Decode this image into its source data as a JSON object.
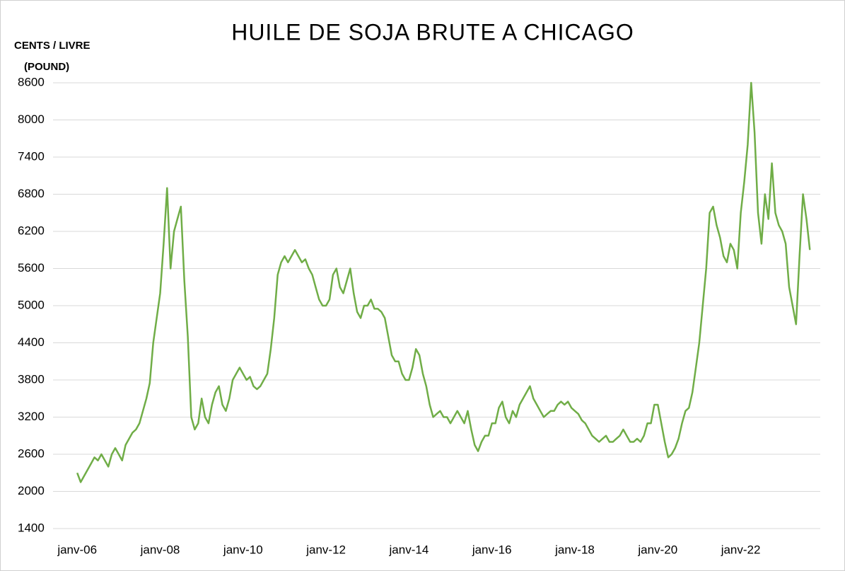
{
  "chart_data": {
    "type": "line",
    "title": "HUILE DE SOJA BRUTE A CHICAGO",
    "y_label": [
      "CENTS / LIVRE",
      "(POUND)"
    ],
    "x": [
      "2006-01",
      "2006-02",
      "2006-03",
      "2006-04",
      "2006-05",
      "2006-06",
      "2006-07",
      "2006-08",
      "2006-09",
      "2006-10",
      "2006-11",
      "2006-12",
      "2007-01",
      "2007-02",
      "2007-03",
      "2007-04",
      "2007-05",
      "2007-06",
      "2007-07",
      "2007-08",
      "2007-09",
      "2007-10",
      "2007-11",
      "2007-12",
      "2008-01",
      "2008-02",
      "2008-03",
      "2008-04",
      "2008-05",
      "2008-06",
      "2008-07",
      "2008-08",
      "2008-09",
      "2008-10",
      "2008-11",
      "2008-12",
      "2009-01",
      "2009-02",
      "2009-03",
      "2009-04",
      "2009-05",
      "2009-06",
      "2009-07",
      "2009-08",
      "2009-09",
      "2009-10",
      "2009-11",
      "2009-12",
      "2010-01",
      "2010-02",
      "2010-03",
      "2010-04",
      "2010-05",
      "2010-06",
      "2010-07",
      "2010-08",
      "2010-09",
      "2010-10",
      "2010-11",
      "2010-12",
      "2011-01",
      "2011-02",
      "2011-03",
      "2011-04",
      "2011-05",
      "2011-06",
      "2011-07",
      "2011-08",
      "2011-09",
      "2011-10",
      "2011-11",
      "2011-12",
      "2012-01",
      "2012-02",
      "2012-03",
      "2012-04",
      "2012-05",
      "2012-06",
      "2012-07",
      "2012-08",
      "2012-09",
      "2012-10",
      "2012-11",
      "2012-12",
      "2013-01",
      "2013-02",
      "2013-03",
      "2013-04",
      "2013-05",
      "2013-06",
      "2013-07",
      "2013-08",
      "2013-09",
      "2013-10",
      "2013-11",
      "2013-12",
      "2014-01",
      "2014-02",
      "2014-03",
      "2014-04",
      "2014-05",
      "2014-06",
      "2014-07",
      "2014-08",
      "2014-09",
      "2014-10",
      "2014-11",
      "2014-12",
      "2015-01",
      "2015-02",
      "2015-03",
      "2015-04",
      "2015-05",
      "2015-06",
      "2015-07",
      "2015-08",
      "2015-09",
      "2015-10",
      "2015-11",
      "2015-12",
      "2016-01",
      "2016-02",
      "2016-03",
      "2016-04",
      "2016-05",
      "2016-06",
      "2016-07",
      "2016-08",
      "2016-09",
      "2016-10",
      "2016-11",
      "2016-12",
      "2017-01",
      "2017-02",
      "2017-03",
      "2017-04",
      "2017-05",
      "2017-06",
      "2017-07",
      "2017-08",
      "2017-09",
      "2017-10",
      "2017-11",
      "2017-12",
      "2018-01",
      "2018-02",
      "2018-03",
      "2018-04",
      "2018-05",
      "2018-06",
      "2018-07",
      "2018-08",
      "2018-09",
      "2018-10",
      "2018-11",
      "2018-12",
      "2019-01",
      "2019-02",
      "2019-03",
      "2019-04",
      "2019-05",
      "2019-06",
      "2019-07",
      "2019-08",
      "2019-09",
      "2019-10",
      "2019-11",
      "2019-12",
      "2020-01",
      "2020-02",
      "2020-03",
      "2020-04",
      "2020-05",
      "2020-06",
      "2020-07",
      "2020-08",
      "2020-09",
      "2020-10",
      "2020-11",
      "2020-12",
      "2021-01",
      "2021-02",
      "2021-03",
      "2021-04",
      "2021-05",
      "2021-06",
      "2021-07",
      "2021-08",
      "2021-09",
      "2021-10",
      "2021-11",
      "2021-12",
      "2022-01",
      "2022-02",
      "2022-03",
      "2022-04",
      "2022-05",
      "2022-06",
      "2022-07",
      "2022-08",
      "2022-09",
      "2022-10",
      "2022-11",
      "2022-12",
      "2023-01",
      "2023-02",
      "2023-03",
      "2023-04",
      "2023-05",
      "2023-06",
      "2023-07",
      "2023-08",
      "2023-09"
    ],
    "series": [
      {
        "color": "#70ad47",
        "values": [
          2300,
          2150,
          2250,
          2350,
          2450,
          2550,
          2500,
          2600,
          2500,
          2400,
          2600,
          2700,
          2600,
          2500,
          2750,
          2850,
          2950,
          3000,
          3100,
          3300,
          3500,
          3750,
          4400,
          4800,
          5200,
          6000,
          6900,
          5600,
          6200,
          6400,
          6600,
          5400,
          4500,
          3200,
          3000,
          3100,
          3500,
          3200,
          3100,
          3400,
          3600,
          3700,
          3400,
          3300,
          3500,
          3800,
          3900,
          4000,
          3900,
          3800,
          3850,
          3700,
          3650,
          3700,
          3800,
          3900,
          4300,
          4800,
          5500,
          5700,
          5800,
          5700,
          5800,
          5900,
          5800,
          5700,
          5750,
          5600,
          5500,
          5300,
          5100,
          5000,
          5000,
          5100,
          5500,
          5600,
          5300,
          5200,
          5400,
          5600,
          5200,
          4900,
          4800,
          5000,
          5000,
          5100,
          4950,
          4950,
          4900,
          4800,
          4500,
          4200,
          4100,
          4100,
          3900,
          3800,
          3800,
          4000,
          4300,
          4200,
          3900,
          3700,
          3400,
          3200,
          3250,
          3300,
          3200,
          3200,
          3100,
          3200,
          3300,
          3200,
          3100,
          3300,
          3000,
          2750,
          2650,
          2800,
          2900,
          2900,
          3100,
          3100,
          3350,
          3450,
          3200,
          3100,
          3300,
          3200,
          3400,
          3500,
          3600,
          3700,
          3500,
          3400,
          3300,
          3200,
          3250,
          3300,
          3300,
          3400,
          3450,
          3400,
          3450,
          3350,
          3300,
          3250,
          3150,
          3100,
          3000,
          2900,
          2850,
          2800,
          2850,
          2900,
          2800,
          2800,
          2850,
          2900,
          3000,
          2900,
          2800,
          2800,
          2850,
          2800,
          2900,
          3100,
          3100,
          3400,
          3400,
          3100,
          2800,
          2550,
          2600,
          2700,
          2850,
          3100,
          3300,
          3350,
          3600,
          4000,
          4400,
          5000,
          5600,
          6500,
          6600,
          6300,
          6100,
          5800,
          5700,
          6000,
          5900,
          5600,
          6500,
          7000,
          7600,
          8600,
          7800,
          6500,
          6000,
          6800,
          6400,
          7300,
          6500,
          6300,
          6200,
          6000,
          5300,
          5000,
          4700,
          5800,
          6800,
          6400,
          5900
        ]
      }
    ],
    "xlim": [
      "2005-06",
      "2023-12"
    ],
    "xticks": [
      {
        "value": "2006-01",
        "label": "janv-06"
      },
      {
        "value": "2008-01",
        "label": "janv-08"
      },
      {
        "value": "2010-01",
        "label": "janv-10"
      },
      {
        "value": "2012-01",
        "label": "janv-12"
      },
      {
        "value": "2014-01",
        "label": "janv-14"
      },
      {
        "value": "2016-01",
        "label": "janv-16"
      },
      {
        "value": "2018-01",
        "label": "janv-18"
      },
      {
        "value": "2020-01",
        "label": "janv-20"
      },
      {
        "value": "2022-01",
        "label": "janv-22"
      }
    ],
    "ylim": [
      1400,
      8600
    ],
    "yticks": [
      1400,
      2000,
      2600,
      3200,
      3800,
      4400,
      5000,
      5600,
      6200,
      6800,
      7400,
      8000,
      8600
    ],
    "grid": true
  }
}
